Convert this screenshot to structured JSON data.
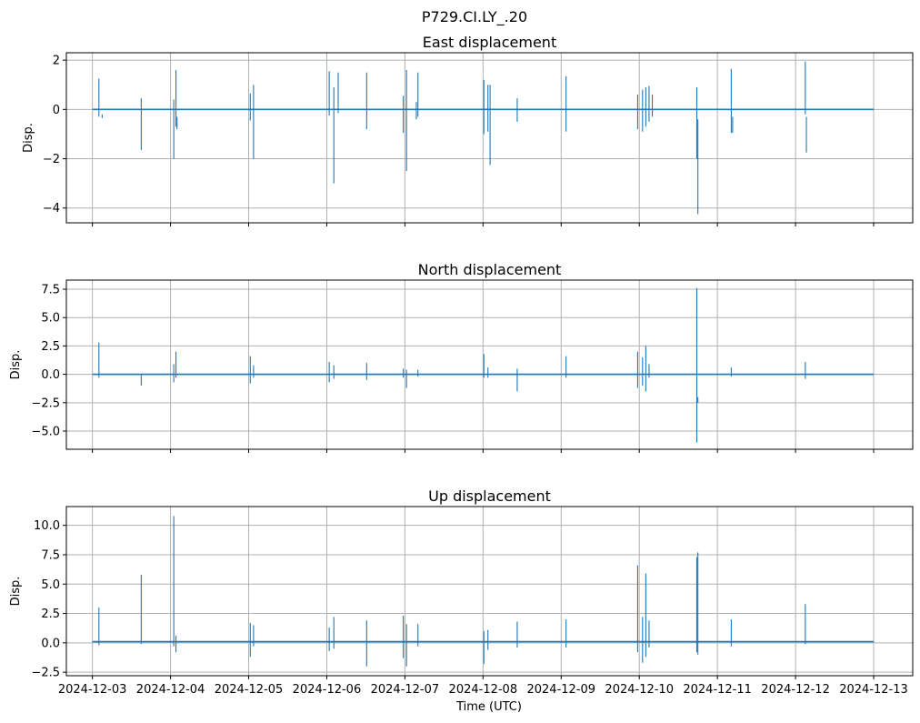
{
  "figure": {
    "suptitle": "P729.CI.LY_.20",
    "xlabel": "Time (UTC)"
  },
  "colors": {
    "series": "#1f77b4",
    "grid": "#b0b0b0",
    "axes": "#000000"
  },
  "chart_data": [
    {
      "type": "line",
      "title": "East displacement",
      "xlabel": "",
      "ylabel": "Disp.",
      "x_range": [
        "2024-12-02T16:00",
        "2024-12-13T12:00"
      ],
      "ylim": [
        -4.6,
        2.3
      ],
      "yticks": [
        2,
        0,
        -2,
        -4
      ],
      "ytick_labels": [
        "2",
        "0",
        "−2",
        "−4"
      ],
      "xticks": [
        "2024-12-03",
        "2024-12-04",
        "2024-12-05",
        "2024-12-06",
        "2024-12-07",
        "2024-12-08",
        "2024-12-09",
        "2024-12-10",
        "2024-12-11",
        "2024-12-12",
        "2024-12-13"
      ],
      "xtick_labels_shown": false,
      "grid": true,
      "series": [
        {
          "baseline": 0.0,
          "x": [
            "2024-12-03T02:00",
            "2024-12-03T03:00",
            "2024-12-03T15:00",
            "2024-12-04T01:00",
            "2024-12-04T01:40",
            "2024-12-04T02:00",
            "2024-12-05T00:30",
            "2024-12-05T01:30",
            "2024-12-06T00:45",
            "2024-12-06T02:10",
            "2024-12-06T03:30",
            "2024-12-06T12:15",
            "2024-12-06T23:30",
            "2024-12-07T00:30",
            "2024-12-07T03:30",
            "2024-12-07T04:00",
            "2024-12-08T00:15",
            "2024-12-08T01:30",
            "2024-12-08T02:10",
            "2024-12-08T10:30",
            "2024-12-09T01:30",
            "2024-12-09T23:30",
            "2024-12-10T01:00",
            "2024-12-10T02:00",
            "2024-12-10T03:00",
            "2024-12-10T04:00",
            "2024-12-10T17:40",
            "2024-12-10T18:00",
            "2024-12-11T04:15",
            "2024-12-11T04:40",
            "2024-12-12T03:00",
            "2024-12-12T03:20"
          ],
          "y": [
            1.25,
            -0.35,
            0.45,
            0.4,
            1.6,
            -0.8,
            0.65,
            1.0,
            1.55,
            0.9,
            1.5,
            1.5,
            0.55,
            1.6,
            0.3,
            1.5,
            1.2,
            1.0,
            1.0,
            0.45,
            1.35,
            0.6,
            0.8,
            0.9,
            0.95,
            0.6,
            0.9,
            -4.25,
            1.65,
            -0.95,
            1.95,
            -1.75
          ],
          "y_secondary": [
            -0.3,
            -0.2,
            -1.65,
            -2.0,
            -0.7,
            -0.3,
            -0.45,
            -2.0,
            -0.25,
            -3.0,
            -0.15,
            -0.8,
            -0.95,
            -2.5,
            -0.4,
            -0.3,
            -1.0,
            -0.9,
            -2.25,
            -0.5,
            -0.9,
            -0.8,
            -0.9,
            -0.7,
            -0.5,
            -0.3,
            -2.0,
            -0.4,
            -0.95,
            -0.3,
            -0.2,
            -0.3
          ]
        }
      ]
    },
    {
      "type": "line",
      "title": "North displacement",
      "xlabel": "",
      "ylabel": "Disp.",
      "x_range": [
        "2024-12-02T16:00",
        "2024-12-13T12:00"
      ],
      "ylim": [
        -6.6,
        8.3
      ],
      "yticks": [
        7.5,
        5.0,
        2.5,
        0.0,
        -2.5,
        -5.0
      ],
      "ytick_labels": [
        "7.5",
        "5.0",
        "2.5",
        "0.0",
        "−2.5",
        "−5.0"
      ],
      "xticks": [
        "2024-12-03",
        "2024-12-04",
        "2024-12-05",
        "2024-12-06",
        "2024-12-07",
        "2024-12-08",
        "2024-12-09",
        "2024-12-10",
        "2024-12-11",
        "2024-12-12",
        "2024-12-13"
      ],
      "xtick_labels_shown": false,
      "grid": true,
      "series": [
        {
          "baseline": 0.0,
          "x": [
            "2024-12-03T02:00",
            "2024-12-03T15:00",
            "2024-12-04T01:00",
            "2024-12-04T01:40",
            "2024-12-05T00:30",
            "2024-12-05T01:30",
            "2024-12-06T00:45",
            "2024-12-06T02:10",
            "2024-12-06T12:15",
            "2024-12-06T23:30",
            "2024-12-07T00:30",
            "2024-12-07T04:00",
            "2024-12-08T00:15",
            "2024-12-08T01:30",
            "2024-12-08T10:30",
            "2024-12-09T01:30",
            "2024-12-09T23:30",
            "2024-12-10T01:00",
            "2024-12-10T02:00",
            "2024-12-10T03:00",
            "2024-12-10T17:40",
            "2024-12-10T18:00",
            "2024-12-11T04:15",
            "2024-12-12T03:00"
          ],
          "y": [
            2.8,
            0.0,
            0.9,
            2.0,
            1.6,
            0.8,
            1.1,
            0.8,
            1.0,
            0.5,
            0.4,
            0.4,
            1.8,
            0.6,
            0.5,
            1.6,
            2.0,
            1.5,
            2.5,
            0.9,
            7.6,
            -2.5,
            0.6,
            1.1
          ],
          "y_secondary": [
            -0.3,
            -1.0,
            -0.7,
            -0.3,
            -0.8,
            -0.3,
            -0.7,
            -0.4,
            -0.5,
            -0.3,
            -1.2,
            -0.2,
            -0.3,
            -0.3,
            -1.5,
            -0.3,
            -1.2,
            -1.0,
            -1.5,
            -0.3,
            -6.0,
            -2.0,
            -0.2,
            -0.4
          ]
        }
      ]
    },
    {
      "type": "line",
      "title": "Up displacement",
      "xlabel": "Time (UTC)",
      "ylabel": "Disp.",
      "x_range": [
        "2024-12-02T16:00",
        "2024-12-13T12:00"
      ],
      "ylim": [
        -2.8,
        11.6
      ],
      "yticks": [
        10.0,
        7.5,
        5.0,
        2.5,
        0.0,
        -2.5
      ],
      "ytick_labels": [
        "10.0",
        "7.5",
        "5.0",
        "2.5",
        "0.0",
        "−2.5"
      ],
      "xticks": [
        "2024-12-03",
        "2024-12-04",
        "2024-12-05",
        "2024-12-06",
        "2024-12-07",
        "2024-12-08",
        "2024-12-09",
        "2024-12-10",
        "2024-12-11",
        "2024-12-12",
        "2024-12-13"
      ],
      "xtick_labels_shown": true,
      "grid": true,
      "series": [
        {
          "baseline": 0.1,
          "x": [
            "2024-12-03T02:00",
            "2024-12-03T15:00",
            "2024-12-04T01:00",
            "2024-12-04T01:40",
            "2024-12-05T00:30",
            "2024-12-05T01:30",
            "2024-12-06T00:45",
            "2024-12-06T02:10",
            "2024-12-06T12:15",
            "2024-12-06T23:30",
            "2024-12-07T00:30",
            "2024-12-07T04:00",
            "2024-12-08T00:15",
            "2024-12-08T01:30",
            "2024-12-08T10:30",
            "2024-12-09T01:30",
            "2024-12-09T23:30",
            "2024-12-10T01:00",
            "2024-12-10T02:00",
            "2024-12-10T03:00",
            "2024-12-10T17:40",
            "2024-12-10T18:00",
            "2024-12-11T04:15",
            "2024-12-12T03:00"
          ],
          "y": [
            3.0,
            5.8,
            10.8,
            0.6,
            1.7,
            1.5,
            1.3,
            2.2,
            1.9,
            2.3,
            1.6,
            1.6,
            1.0,
            1.1,
            1.8,
            2.0,
            6.6,
            2.2,
            5.9,
            1.9,
            7.3,
            7.7,
            2.0,
            3.3
          ],
          "y_secondary": [
            -0.2,
            -0.1,
            -0.3,
            -0.8,
            -1.2,
            -0.3,
            -0.7,
            -0.5,
            -2.0,
            -1.3,
            -2.0,
            -0.3,
            -1.8,
            -0.6,
            -0.4,
            -0.4,
            -0.8,
            -1.7,
            -1.2,
            -0.4,
            -0.8,
            -1.0,
            -0.3,
            -0.1
          ]
        }
      ]
    }
  ]
}
